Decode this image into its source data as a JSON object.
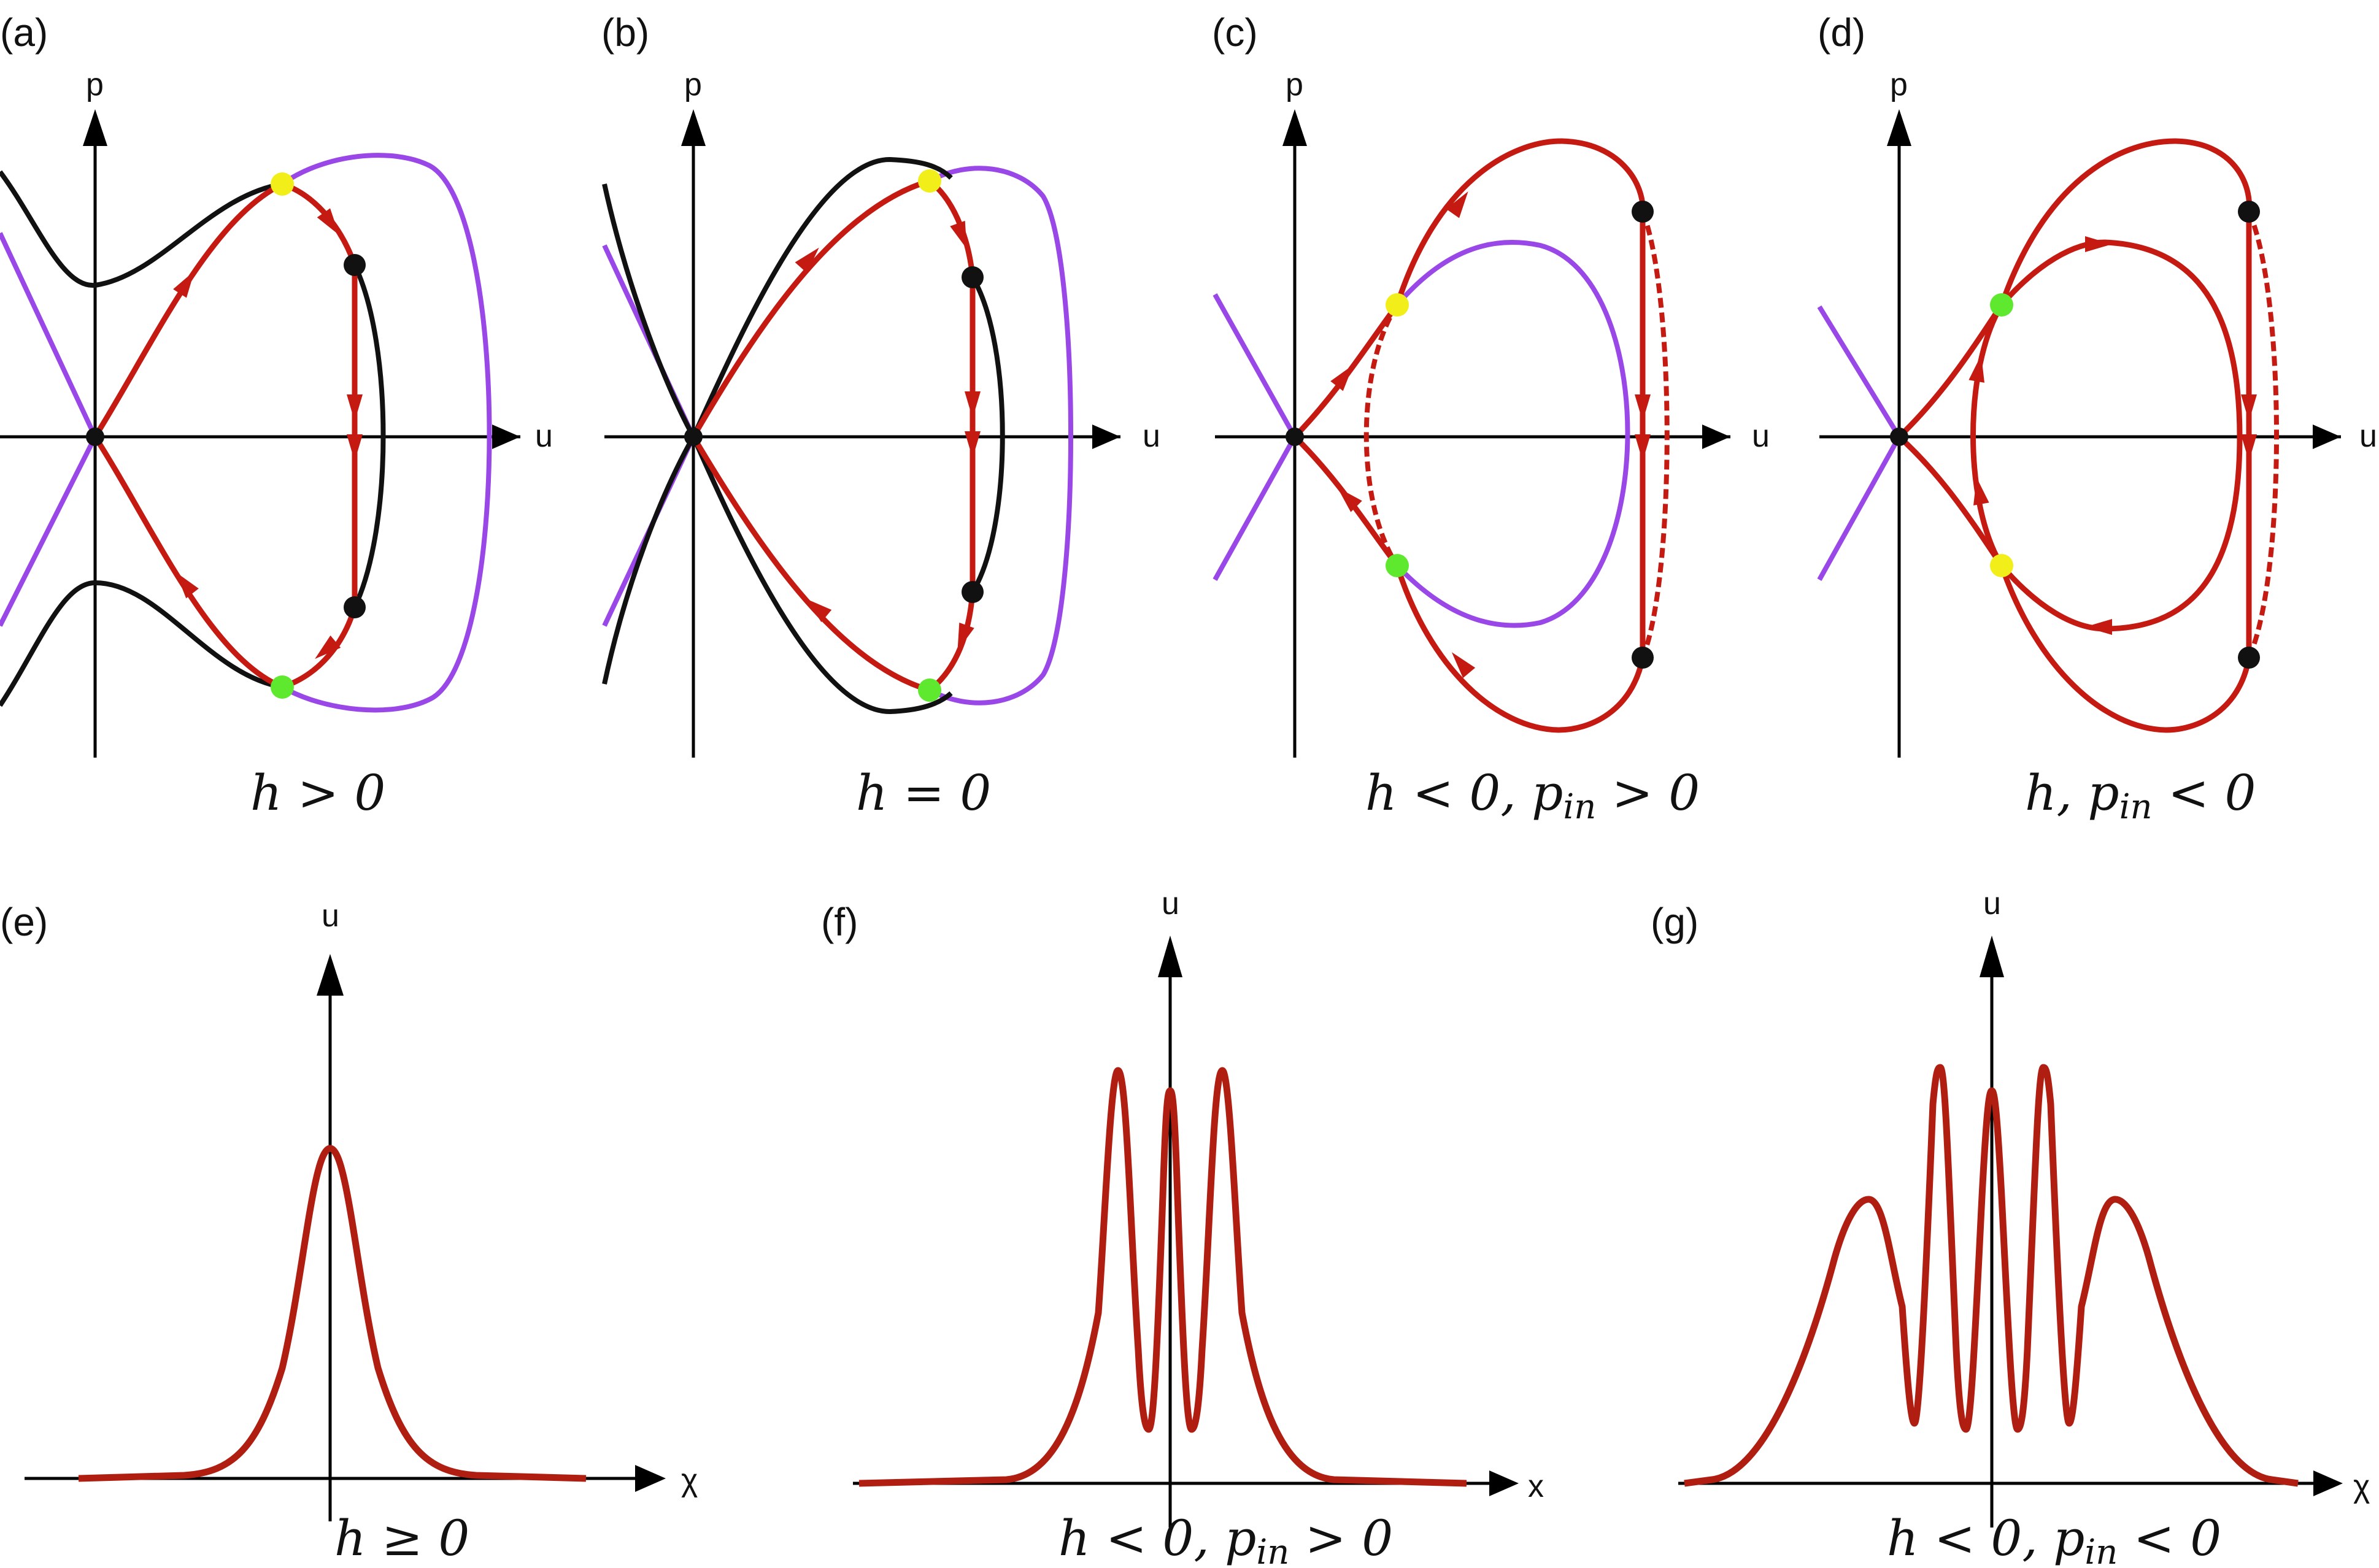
{
  "panels": {
    "a": {
      "label": "(a)",
      "caption": {
        "pre": "h > 0",
        "sub": "",
        "post": ""
      },
      "ylabel": "p",
      "xlabel": "u"
    },
    "b": {
      "label": "(b)",
      "caption": {
        "pre": "h = 0",
        "sub": "",
        "post": ""
      },
      "ylabel": "p",
      "xlabel": "u"
    },
    "c": {
      "label": "(c)",
      "caption": {
        "pre": "h < 0, p",
        "sub": "in",
        "post": " > 0"
      },
      "ylabel": "p",
      "xlabel": "u"
    },
    "d": {
      "label": "(d)",
      "caption": {
        "pre": "h, p",
        "sub": "in",
        "post": " < 0"
      },
      "ylabel": "p",
      "xlabel": "u"
    },
    "e": {
      "label": "(e)",
      "caption": {
        "pre": "h ≥ 0",
        "sub": "",
        "post": ""
      },
      "ylabel": "u",
      "xlabel": "χ"
    },
    "f": {
      "label": "(f)",
      "caption": {
        "pre": "h < 0, p",
        "sub": "in",
        "post": " > 0"
      },
      "ylabel": "u",
      "xlabel": "x"
    },
    "g": {
      "label": "(g)",
      "caption": {
        "pre": "h < 0, p",
        "sub": "in",
        "post": " < 0"
      },
      "ylabel": "u",
      "xlabel": "χ"
    }
  },
  "colors": {
    "trajectory": "#c41a12",
    "separatrix": "#111111",
    "boundary": "#9a47e8",
    "point_yellow": "#f2ee1a",
    "point_green": "#5ee82e",
    "point_black": "#111111"
  }
}
